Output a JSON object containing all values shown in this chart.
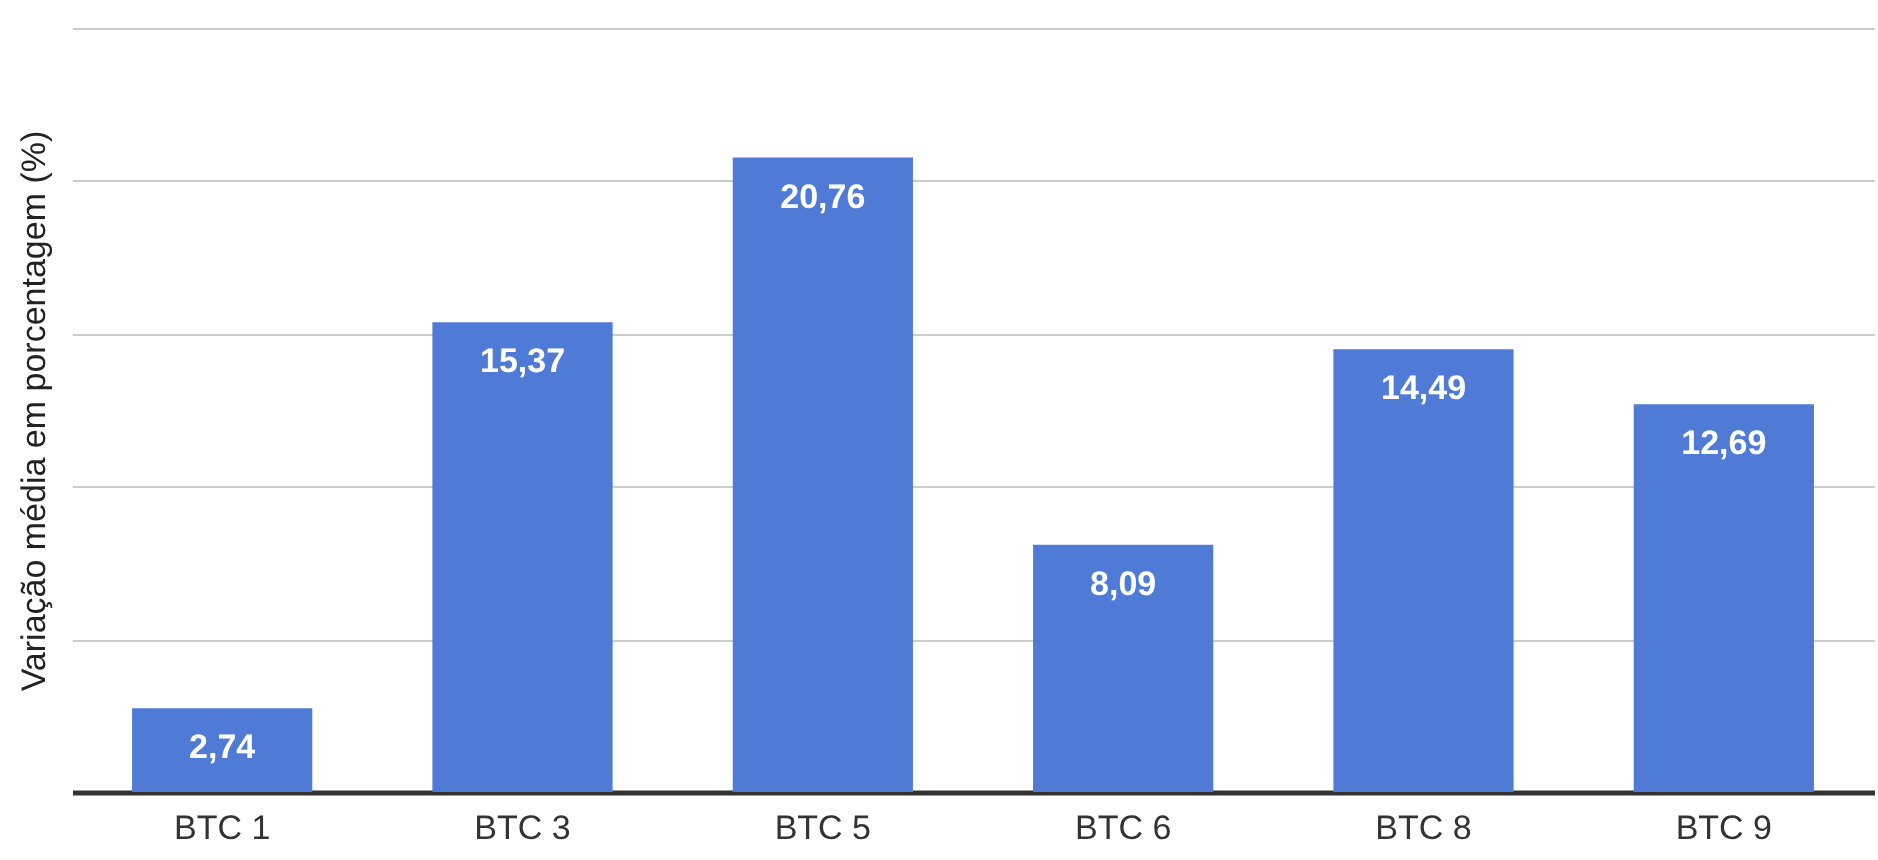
{
  "chart_data": {
    "type": "bar",
    "ylabel": "Variação média em porcentagem (%)",
    "categories": [
      "BTC 1",
      "BTC 3",
      "BTC 5",
      "BTC 6",
      "BTC 8",
      "BTC 9"
    ],
    "values": [
      2.74,
      15.37,
      20.76,
      8.09,
      14.49,
      12.69
    ],
    "value_labels": [
      "2,74",
      "15,37",
      "20,76",
      "8,09",
      "14,49",
      "12,69"
    ],
    "color": "#4f7bd6",
    "relative": false,
    "ylim": [
      0,
      25
    ],
    "yticks": [
      {
        "value": 0,
        "label": null
      },
      {
        "value": 5,
        "label": null
      },
      {
        "value": 10,
        "label": null
      },
      {
        "value": 15,
        "label": null
      },
      {
        "value": 20,
        "label": null
      },
      {
        "value": 25,
        "label": null
      }
    ],
    "grid": "y",
    "tick_labels": "x"
  }
}
